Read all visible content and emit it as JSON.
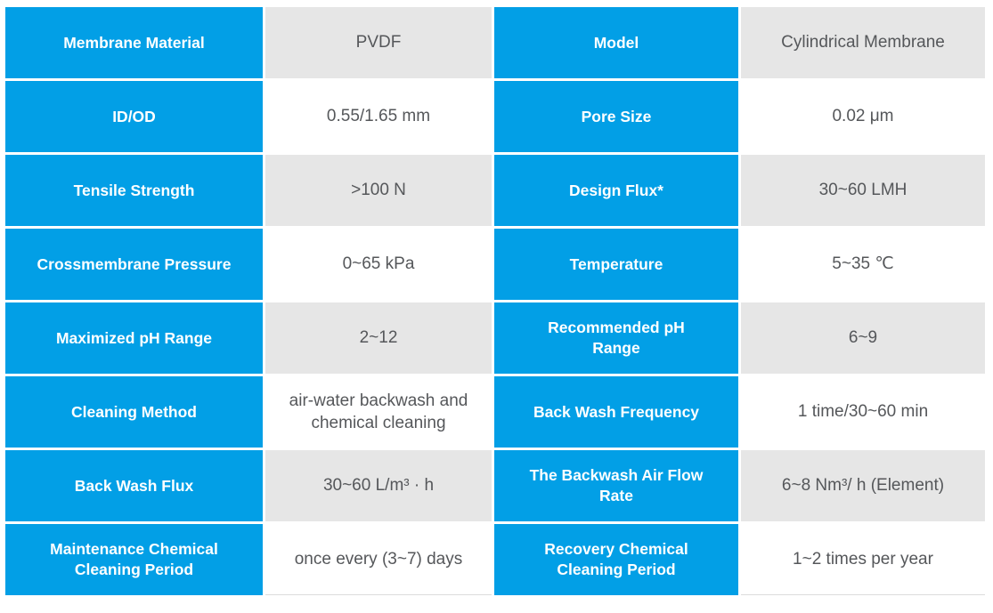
{
  "colors": {
    "accent_blue": "#029FE6",
    "row_alt_gray": "#E6E6E6",
    "row_white": "#FFFFFF",
    "label_text": "#FFFFFF",
    "value_text": "#55575A",
    "table_bottom_rule": "#DCDCDC"
  },
  "table": {
    "rows": [
      {
        "label1": "Membrane Material",
        "value1": "PVDF",
        "label2": "Model",
        "value2": "Cylindrical Membrane"
      },
      {
        "label1": "ID/OD",
        "value1": "0.55/1.65 mm",
        "label2": "Pore Size",
        "value2": "0.02 μm"
      },
      {
        "label1": "Tensile Strength",
        "value1": ">100 N",
        "label2": "Design Flux*",
        "value2": "30~60 LMH"
      },
      {
        "label1": "Crossmembrane Pressure",
        "value1": "0~65 kPa",
        "label2": "Temperature",
        "value2": "5~35 ℃"
      },
      {
        "label1": "Maximized pH Range",
        "value1": "2~12",
        "label2": "Recommended pH\nRange",
        "value2": "6~9"
      },
      {
        "label1": "Cleaning Method",
        "value1": "air-water backwash and\nchemical cleaning",
        "label2": "Back Wash Frequency",
        "value2": "1 time/30~60 min"
      },
      {
        "label1": "Back Wash Flux",
        "value1": "30~60 L/m³ · h",
        "label2": "The Backwash Air Flow\nRate",
        "value2": "6~8 Nm³/ h (Element)"
      },
      {
        "label1": "Maintenance Chemical\nCleaning Period",
        "value1": "once every (3~7) days",
        "label2": "Recovery Chemical\nCleaning Period",
        "value2": "1~2 times per year"
      }
    ]
  }
}
